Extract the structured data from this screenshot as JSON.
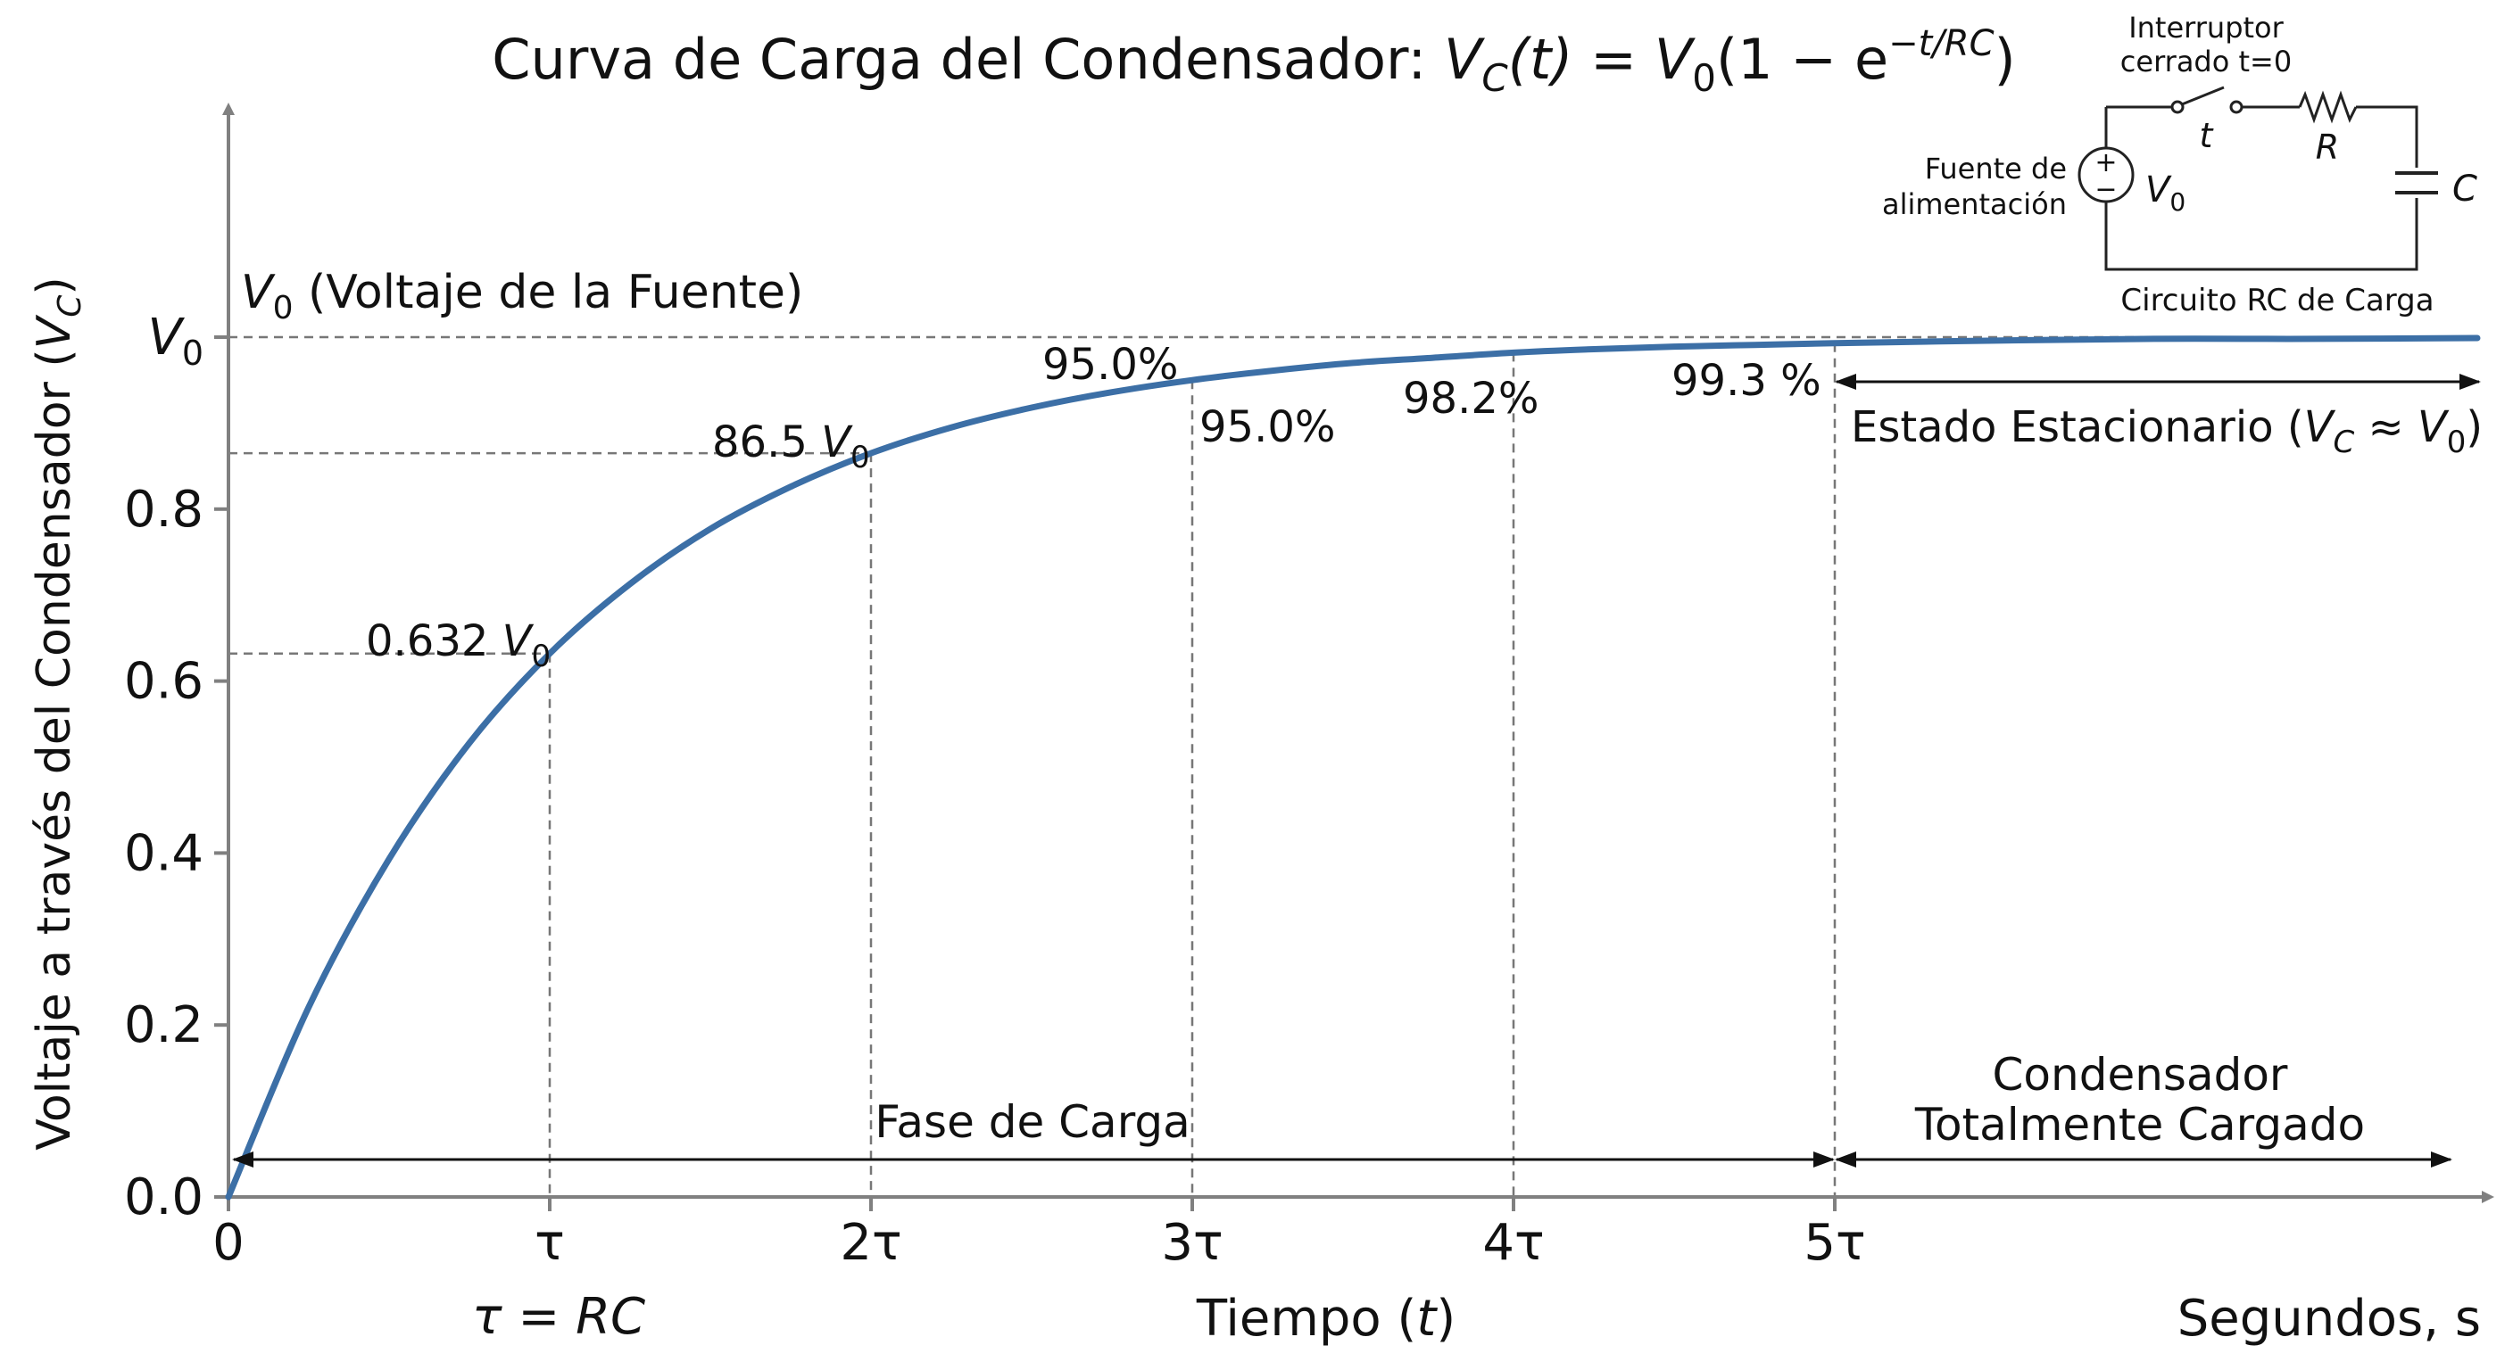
{
  "chart_data": {
    "type": "line",
    "title": {
      "prefix": "Curva de Carga del Condensador: ",
      "vc": "V",
      "vc_sub": "C",
      "t_arg": "(t)",
      "eq": " = ",
      "v0": "V",
      "v0_sub": "0",
      "bracket": "(1 − e",
      "exp": "−t/RC",
      "close": ")"
    },
    "ylabel": {
      "text": "Voltaje a través del Condensador (",
      "var": "V",
      "sub": "C",
      "close": ")"
    },
    "xlabel": {
      "text": "Tiempo (",
      "var": "t",
      "close": ")"
    },
    "x_unit_label": "Segundos, s",
    "tau_def": "τ = RC",
    "x_ticks": [
      "0",
      "τ",
      "2τ",
      "3τ",
      "4τ",
      "5τ"
    ],
    "y_ticks": [
      "0.0",
      "0.2",
      "0.4",
      "0.6",
      "0.8"
    ],
    "y_top_tick": {
      "var": "V",
      "sub": "0"
    },
    "xlim": [
      0,
      7
    ],
    "ylim": [
      0,
      1
    ],
    "x": [
      0,
      0.25,
      0.5,
      0.75,
      1,
      1.25,
      1.5,
      1.75,
      2,
      2.25,
      2.5,
      2.75,
      3,
      3.25,
      3.5,
      3.75,
      4,
      4.25,
      4.5,
      4.75,
      5,
      5.5,
      6,
      6.5,
      7
    ],
    "series": [
      {
        "color": "#3c6fa6",
        "values": [
          0,
          0.221,
          0.393,
          0.528,
          0.632,
          0.713,
          0.777,
          0.826,
          0.865,
          0.895,
          0.918,
          0.936,
          0.95,
          0.961,
          0.97,
          0.976,
          0.982,
          0.986,
          0.989,
          0.991,
          0.993,
          0.996,
          0.998,
          0.998,
          0.999
        ]
      }
    ],
    "reference_line": {
      "var": "V",
      "sub": "0",
      "text": " (Voltaje de la Fuente)"
    },
    "annotations": {
      "p1": {
        "num": "0.632 ",
        "var": "V",
        "sub": "0"
      },
      "p2": {
        "num": "86.5 ",
        "var": "V",
        "sub": "0"
      },
      "p3_above": "95.0%",
      "p3_right": "95.0%",
      "p4": "98.2%",
      "p5": "99.3 %"
    },
    "steady_state": {
      "text": "Estado Estacionario (",
      "var1": "V",
      "sub1": "C",
      "approx": " ≈ ",
      "var2": "V",
      "sub2": "0",
      "close": ")"
    },
    "phase_charge": "Fase de Carga",
    "phase_full": [
      "Condensador",
      "Totalmente Cargado"
    ],
    "circuit": {
      "switch_label": [
        "Interruptor",
        "cerrado t=0"
      ],
      "switch_var": "t",
      "source_label": [
        "Fuente de",
        "alimentación"
      ],
      "source_var": "V",
      "source_sub": "0",
      "resistor": "R",
      "capacitor": "C",
      "caption": "Circuito RC de Carga",
      "plus": "+",
      "minus": "−"
    },
    "colors": {
      "curve": "#3c6fa6",
      "axis": "#808080",
      "guide": "#777777"
    }
  }
}
